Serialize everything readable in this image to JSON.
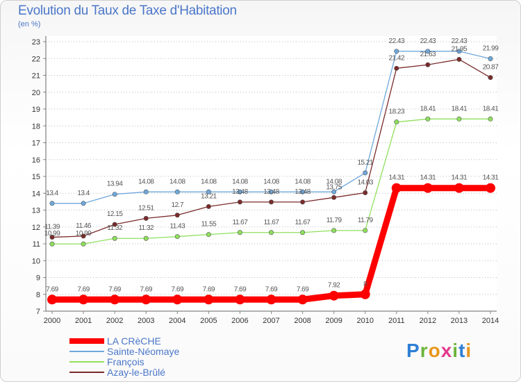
{
  "title": "Evolution du Taux de Taxe d'Habitation",
  "subtitle": "(en %)",
  "logo": {
    "letters": [
      "P",
      "r",
      "o",
      "x",
      "i",
      "t",
      "i"
    ],
    "colors": [
      "#2f7fd4",
      "#6bb43a",
      "#e8961b",
      "#e23b8c",
      "#6bb43a",
      "#2f7fd4",
      "#e8961b"
    ]
  },
  "chart_data": {
    "type": "line",
    "x": [
      2000,
      2001,
      2002,
      2003,
      2004,
      2005,
      2006,
      2007,
      2008,
      2009,
      2010,
      2011,
      2012,
      2013,
      2014
    ],
    "ylim": [
      7,
      23
    ],
    "yticks": [
      7,
      8,
      9,
      10,
      11,
      12,
      13,
      14,
      15,
      16,
      17,
      18,
      19,
      20,
      21,
      22,
      23
    ],
    "grid": "horizontal-dotted",
    "legend_placement": "bottom-left",
    "series": [
      {
        "name": "LA CRèCHE",
        "color": "#ff0000",
        "values": [
          7.69,
          7.69,
          7.69,
          7.69,
          7.69,
          7.69,
          7.69,
          7.69,
          7.69,
          7.92,
          8,
          14.31,
          14.31,
          14.31,
          14.31
        ],
        "labels": [
          "7.69",
          "7.69",
          "7.69",
          "7.69",
          "7.69",
          "7.69",
          "7.69",
          "7.69",
          "7.69",
          "7.92",
          "8",
          "14.31",
          "14.31",
          "14.31",
          "14.31"
        ]
      },
      {
        "name": "Sainte-Néomaye",
        "color": "#6fa8dc",
        "values": [
          13.4,
          13.4,
          13.94,
          14.08,
          14.08,
          14.08,
          14.08,
          14.08,
          14.08,
          14.08,
          15.21,
          22.43,
          22.43,
          22.43,
          21.99
        ],
        "labels": [
          "13.4",
          "13.4",
          "13.94",
          "14.08",
          "14.08",
          "14.08",
          "14.08",
          "14.08",
          "14.08",
          "14.08",
          "15.21",
          "22.43",
          "22.43",
          "22.43",
          "21.99"
        ]
      },
      {
        "name": "François",
        "color": "#8fe05c",
        "values": [
          10.99,
          10.99,
          11.32,
          11.32,
          11.43,
          11.55,
          11.67,
          11.67,
          11.67,
          11.79,
          11.79,
          18.23,
          18.41,
          18.41,
          18.41
        ],
        "labels": [
          "10.99",
          "10.99",
          "11.32",
          "11.32",
          "11.43",
          "11.55",
          "11.67",
          "11.67",
          "11.67",
          "11.79",
          "11.79",
          "18.23",
          "18.41",
          "18.41",
          "18.41"
        ]
      },
      {
        "name": "Azay-le-Brûlé",
        "color": "#7a2a2a",
        "values": [
          11.39,
          11.46,
          12.15,
          12.51,
          12.7,
          13.21,
          13.48,
          13.48,
          13.48,
          13.75,
          14.03,
          21.42,
          21.63,
          21.95,
          20.87
        ],
        "labels": [
          "11.39",
          "11.46",
          "12.15",
          "12.51",
          "12.7",
          "13.21",
          "13.48",
          "13.48",
          "13.48",
          "13.75",
          "14.03",
          "21.42",
          "21.63",
          "21.95",
          "20.87"
        ]
      }
    ]
  }
}
